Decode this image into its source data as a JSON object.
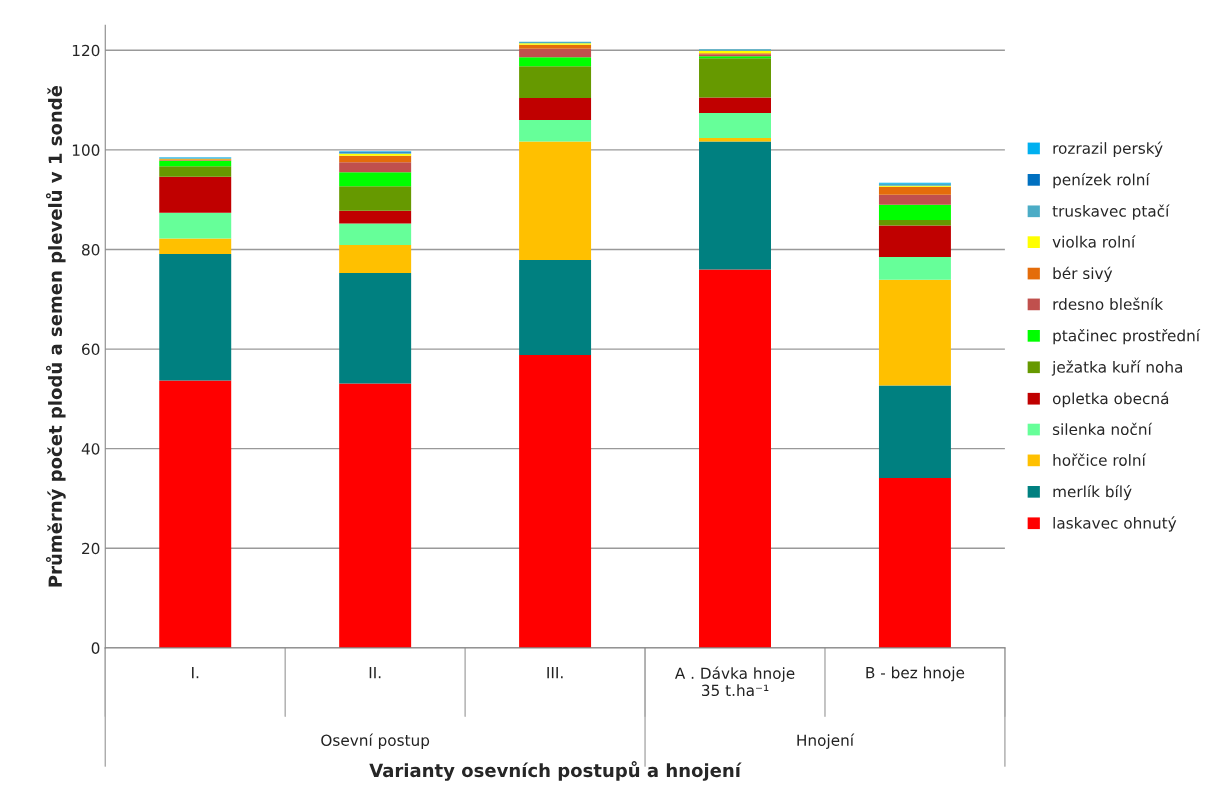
{
  "chart_data": {
    "type": "bar",
    "stacked": true,
    "xlabel": "Varianty osevních postupů a hnojení",
    "ylabel": "Průměrný počet plodů a semen plevelů v 1 sondě",
    "categories": [
      "I.",
      "II.",
      "III.",
      "A . Dávka hnoje\n35 t.ha⁻¹",
      "B - bez hnoje"
    ],
    "annotations": [
      "Osevní postup",
      "Hnojení"
    ],
    "series": [
      {
        "name": "laskavec ohnutý",
        "color": "#ff0000",
        "values": [
          53.7,
          53.1,
          58.8,
          76.0,
          34.1
        ]
      },
      {
        "name": "merlík bílý",
        "color": "#008080",
        "values": [
          25.4,
          22.2,
          19.1,
          25.7,
          18.6
        ]
      },
      {
        "name": "hořčice rolní",
        "color": "#ffc000",
        "values": [
          3.1,
          5.6,
          23.8,
          0.7,
          21.2
        ]
      },
      {
        "name": "silenka noční",
        "color": "#66ff99",
        "values": [
          5.2,
          4.3,
          4.3,
          5.0,
          4.6
        ]
      },
      {
        "name": "opletka obecná",
        "color": "#c00000",
        "values": [
          7.2,
          2.6,
          4.4,
          3.1,
          6.3
        ]
      },
      {
        "name": "ježatka kuří noha",
        "color": "#669900",
        "values": [
          2.1,
          4.9,
          6.4,
          7.9,
          1.1
        ]
      },
      {
        "name": "ptačinec prostřední",
        "color": "#00ff00",
        "values": [
          1.1,
          2.8,
          1.8,
          0.4,
          3.1
        ]
      },
      {
        "name": "rdesno blešník",
        "color": "#c0504d",
        "values": [
          0.1,
          2.0,
          1.7,
          0.4,
          2.0
        ]
      },
      {
        "name": "bér sivý",
        "color": "#e46c0a",
        "values": [
          0.2,
          1.3,
          0.8,
          0.2,
          1.6
        ]
      },
      {
        "name": "violka rolní",
        "color": "#ffff00",
        "values": [
          0.1,
          0.4,
          0.3,
          0.5,
          0.2
        ]
      },
      {
        "name": "truskavec ptačí",
        "color": "#4bacc6",
        "values": [
          0.2,
          0.2,
          0.3,
          0.3,
          0.4
        ]
      },
      {
        "name": "penízek rolní",
        "color": "#0070c0",
        "values": [
          0,
          0.2,
          0,
          0,
          0
        ]
      },
      {
        "name": "rozrazil perský",
        "color": "#00b0f0",
        "values": [
          0.1,
          0.1,
          0,
          0,
          0.2
        ]
      }
    ],
    "ylim": [
      0,
      125
    ],
    "yticks": [
      0,
      20,
      40,
      60,
      80,
      100,
      120
    ],
    "grid": "y",
    "legend": "right"
  }
}
